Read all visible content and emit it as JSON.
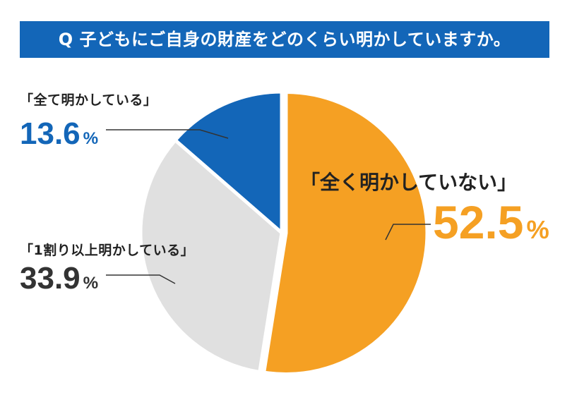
{
  "title": "Q 子どもにご自身の財産をどのくらい明かしていますか。",
  "colors": {
    "title_bg": "#1366b8",
    "full": "#1366b8",
    "part": "#e0e0e0",
    "none": "#f5a023",
    "leader": "#333333"
  },
  "chart_data": {
    "type": "pie",
    "title": "Q 子どもにご自身の財産をどのくらい明かしていますか。",
    "unit": "%",
    "start_angle_deg": 0,
    "direction": "clockwise",
    "slices": [
      {
        "label": "「全く明かしていない」",
        "value": 52.5,
        "value_text": "52.5",
        "unit": "%",
        "color": "#f5a023",
        "key": "none"
      },
      {
        "label": "「1割り以上明かしている」",
        "value": 33.9,
        "value_text": "33.9",
        "unit": "%",
        "color": "#e0e0e0",
        "key": "part"
      },
      {
        "label": "「全て明かしている」",
        "value": 13.6,
        "value_text": "13.6",
        "unit": "%",
        "color": "#1366b8",
        "key": "full"
      }
    ]
  }
}
